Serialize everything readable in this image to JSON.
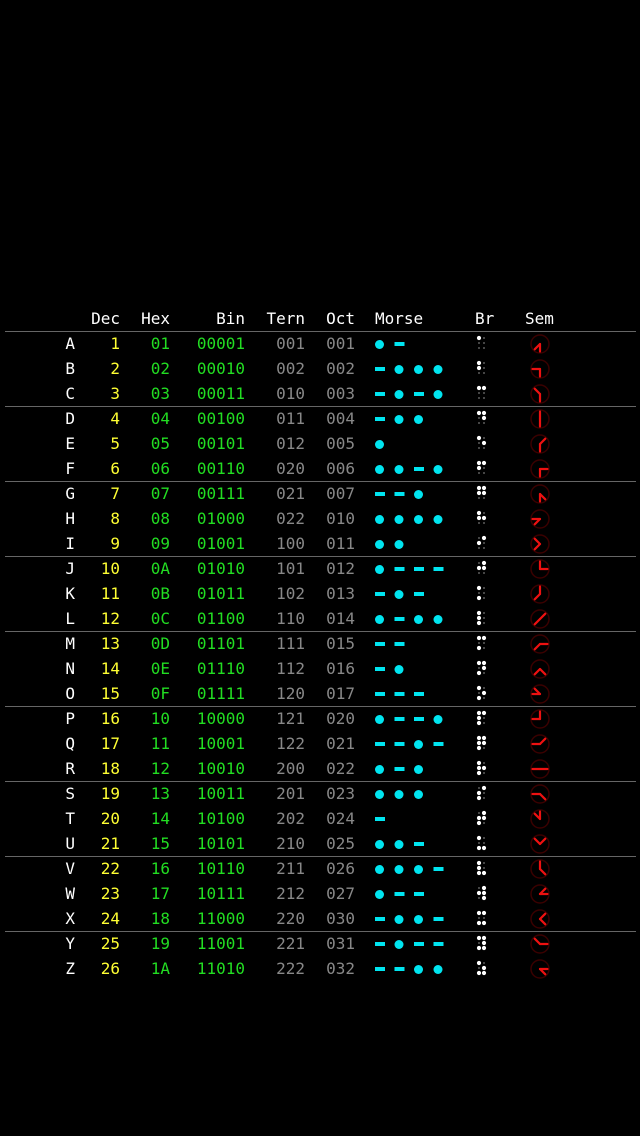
{
  "headers": {
    "dec": "Dec",
    "hex": "Hex",
    "bin": "Bin",
    "tern": "Tern",
    "oct": "Oct",
    "morse": "Morse",
    "br": "Br",
    "sem": "Sem"
  },
  "colors": {
    "letter": "#ffffff",
    "dec": "#ffff33",
    "hex": "#22dd22",
    "bin": "#22dd22",
    "tern": "#888888",
    "oct": "#888888",
    "morse": "#00e5f0",
    "braille": "#ffffff",
    "semaphore": "#ee1111",
    "header": "#ffffff",
    "divider": "#666666"
  },
  "rows": [
    {
      "letter": "A",
      "dec": "1",
      "hex": "01",
      "bin": "00001",
      "tern": "001",
      "oct": "001",
      "morse": ".-"
    },
    {
      "letter": "B",
      "dec": "2",
      "hex": "02",
      "bin": "00010",
      "tern": "002",
      "oct": "002",
      "morse": "-..."
    },
    {
      "letter": "C",
      "dec": "3",
      "hex": "03",
      "bin": "00011",
      "tern": "010",
      "oct": "003",
      "morse": "-.-."
    },
    {
      "letter": "D",
      "dec": "4",
      "hex": "04",
      "bin": "00100",
      "tern": "011",
      "oct": "004",
      "morse": "-.."
    },
    {
      "letter": "E",
      "dec": "5",
      "hex": "05",
      "bin": "00101",
      "tern": "012",
      "oct": "005",
      "morse": "."
    },
    {
      "letter": "F",
      "dec": "6",
      "hex": "06",
      "bin": "00110",
      "tern": "020",
      "oct": "006",
      "morse": "..-."
    },
    {
      "letter": "G",
      "dec": "7",
      "hex": "07",
      "bin": "00111",
      "tern": "021",
      "oct": "007",
      "morse": "--."
    },
    {
      "letter": "H",
      "dec": "8",
      "hex": "08",
      "bin": "01000",
      "tern": "022",
      "oct": "010",
      "morse": "...."
    },
    {
      "letter": "I",
      "dec": "9",
      "hex": "09",
      "bin": "01001",
      "tern": "100",
      "oct": "011",
      "morse": ".."
    },
    {
      "letter": "J",
      "dec": "10",
      "hex": "0A",
      "bin": "01010",
      "tern": "101",
      "oct": "012",
      "morse": ".---"
    },
    {
      "letter": "K",
      "dec": "11",
      "hex": "0B",
      "bin": "01011",
      "tern": "102",
      "oct": "013",
      "morse": "-.-"
    },
    {
      "letter": "L",
      "dec": "12",
      "hex": "0C",
      "bin": "01100",
      "tern": "110",
      "oct": "014",
      "morse": ".-.."
    },
    {
      "letter": "M",
      "dec": "13",
      "hex": "0D",
      "bin": "01101",
      "tern": "111",
      "oct": "015",
      "morse": "--"
    },
    {
      "letter": "N",
      "dec": "14",
      "hex": "0E",
      "bin": "01110",
      "tern": "112",
      "oct": "016",
      "morse": "-."
    },
    {
      "letter": "O",
      "dec": "15",
      "hex": "0F",
      "bin": "01111",
      "tern": "120",
      "oct": "017",
      "morse": "---"
    },
    {
      "letter": "P",
      "dec": "16",
      "hex": "10",
      "bin": "10000",
      "tern": "121",
      "oct": "020",
      "morse": ".--."
    },
    {
      "letter": "Q",
      "dec": "17",
      "hex": "11",
      "bin": "10001",
      "tern": "122",
      "oct": "021",
      "morse": "--.-"
    },
    {
      "letter": "R",
      "dec": "18",
      "hex": "12",
      "bin": "10010",
      "tern": "200",
      "oct": "022",
      "morse": ".-."
    },
    {
      "letter": "S",
      "dec": "19",
      "hex": "13",
      "bin": "10011",
      "tern": "201",
      "oct": "023",
      "morse": "..."
    },
    {
      "letter": "T",
      "dec": "20",
      "hex": "14",
      "bin": "10100",
      "tern": "202",
      "oct": "024",
      "morse": "-"
    },
    {
      "letter": "U",
      "dec": "21",
      "hex": "15",
      "bin": "10101",
      "tern": "210",
      "oct": "025",
      "morse": "..-"
    },
    {
      "letter": "V",
      "dec": "22",
      "hex": "16",
      "bin": "10110",
      "tern": "211",
      "oct": "026",
      "morse": "...-"
    },
    {
      "letter": "W",
      "dec": "23",
      "hex": "17",
      "bin": "10111",
      "tern": "212",
      "oct": "027",
      "morse": ".--"
    },
    {
      "letter": "X",
      "dec": "24",
      "hex": "18",
      "bin": "11000",
      "tern": "220",
      "oct": "030",
      "morse": "-..-"
    },
    {
      "letter": "Y",
      "dec": "25",
      "hex": "19",
      "bin": "11001",
      "tern": "221",
      "oct": "031",
      "morse": "-.--"
    },
    {
      "letter": "Z",
      "dec": "26",
      "hex": "1A",
      "bin": "11010",
      "tern": "222",
      "oct": "032",
      "morse": "--.."
    }
  ]
}
